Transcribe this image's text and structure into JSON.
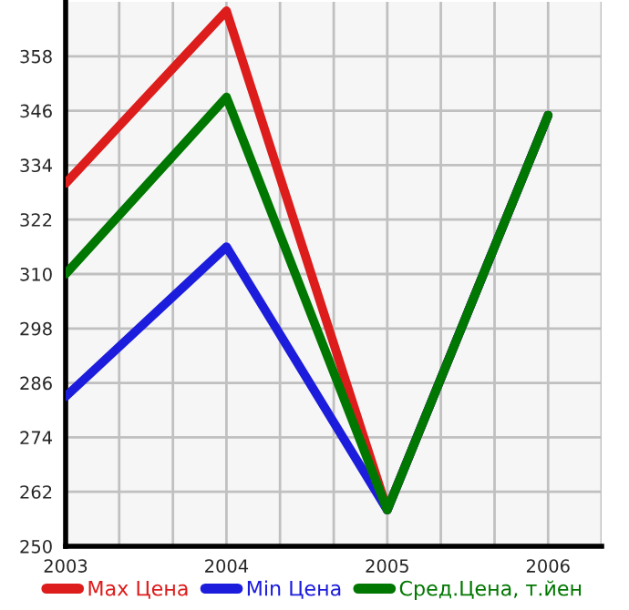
{
  "chart_data": {
    "type": "line",
    "x": [
      2003,
      2004,
      2005,
      2006
    ],
    "series": [
      {
        "name": "Max Цена",
        "color": "#dd1c1c",
        "values": [
          330,
          368,
          258,
          345
        ]
      },
      {
        "name": "Min Цена",
        "color": "#1c1cdd",
        "values": [
          283,
          316,
          258,
          345
        ]
      },
      {
        "name": "Сред.Цена, т.йен",
        "color": "#007700",
        "values": [
          310,
          349,
          258,
          345
        ]
      }
    ],
    "xlim": [
      2003,
      2006.333
    ],
    "xticks": [
      2003,
      {
        "value": 2003.333,
        "label": null
      },
      {
        "value": 2003.667,
        "label": null
      },
      2004,
      {
        "value": 2004.333,
        "label": null
      },
      {
        "value": 2004.667,
        "label": null
      },
      2005,
      {
        "value": 2005.333,
        "label": null
      },
      {
        "value": 2005.667,
        "label": null
      },
      2006,
      {
        "value": 2006.333,
        "label": null
      }
    ],
    "ylim": [
      250,
      370
    ],
    "yticks": [
      250,
      262,
      274,
      286,
      298,
      310,
      322,
      334,
      346,
      358
    ],
    "grid": true,
    "legend": "bottom",
    "marker": "none",
    "line_style": "solid"
  }
}
